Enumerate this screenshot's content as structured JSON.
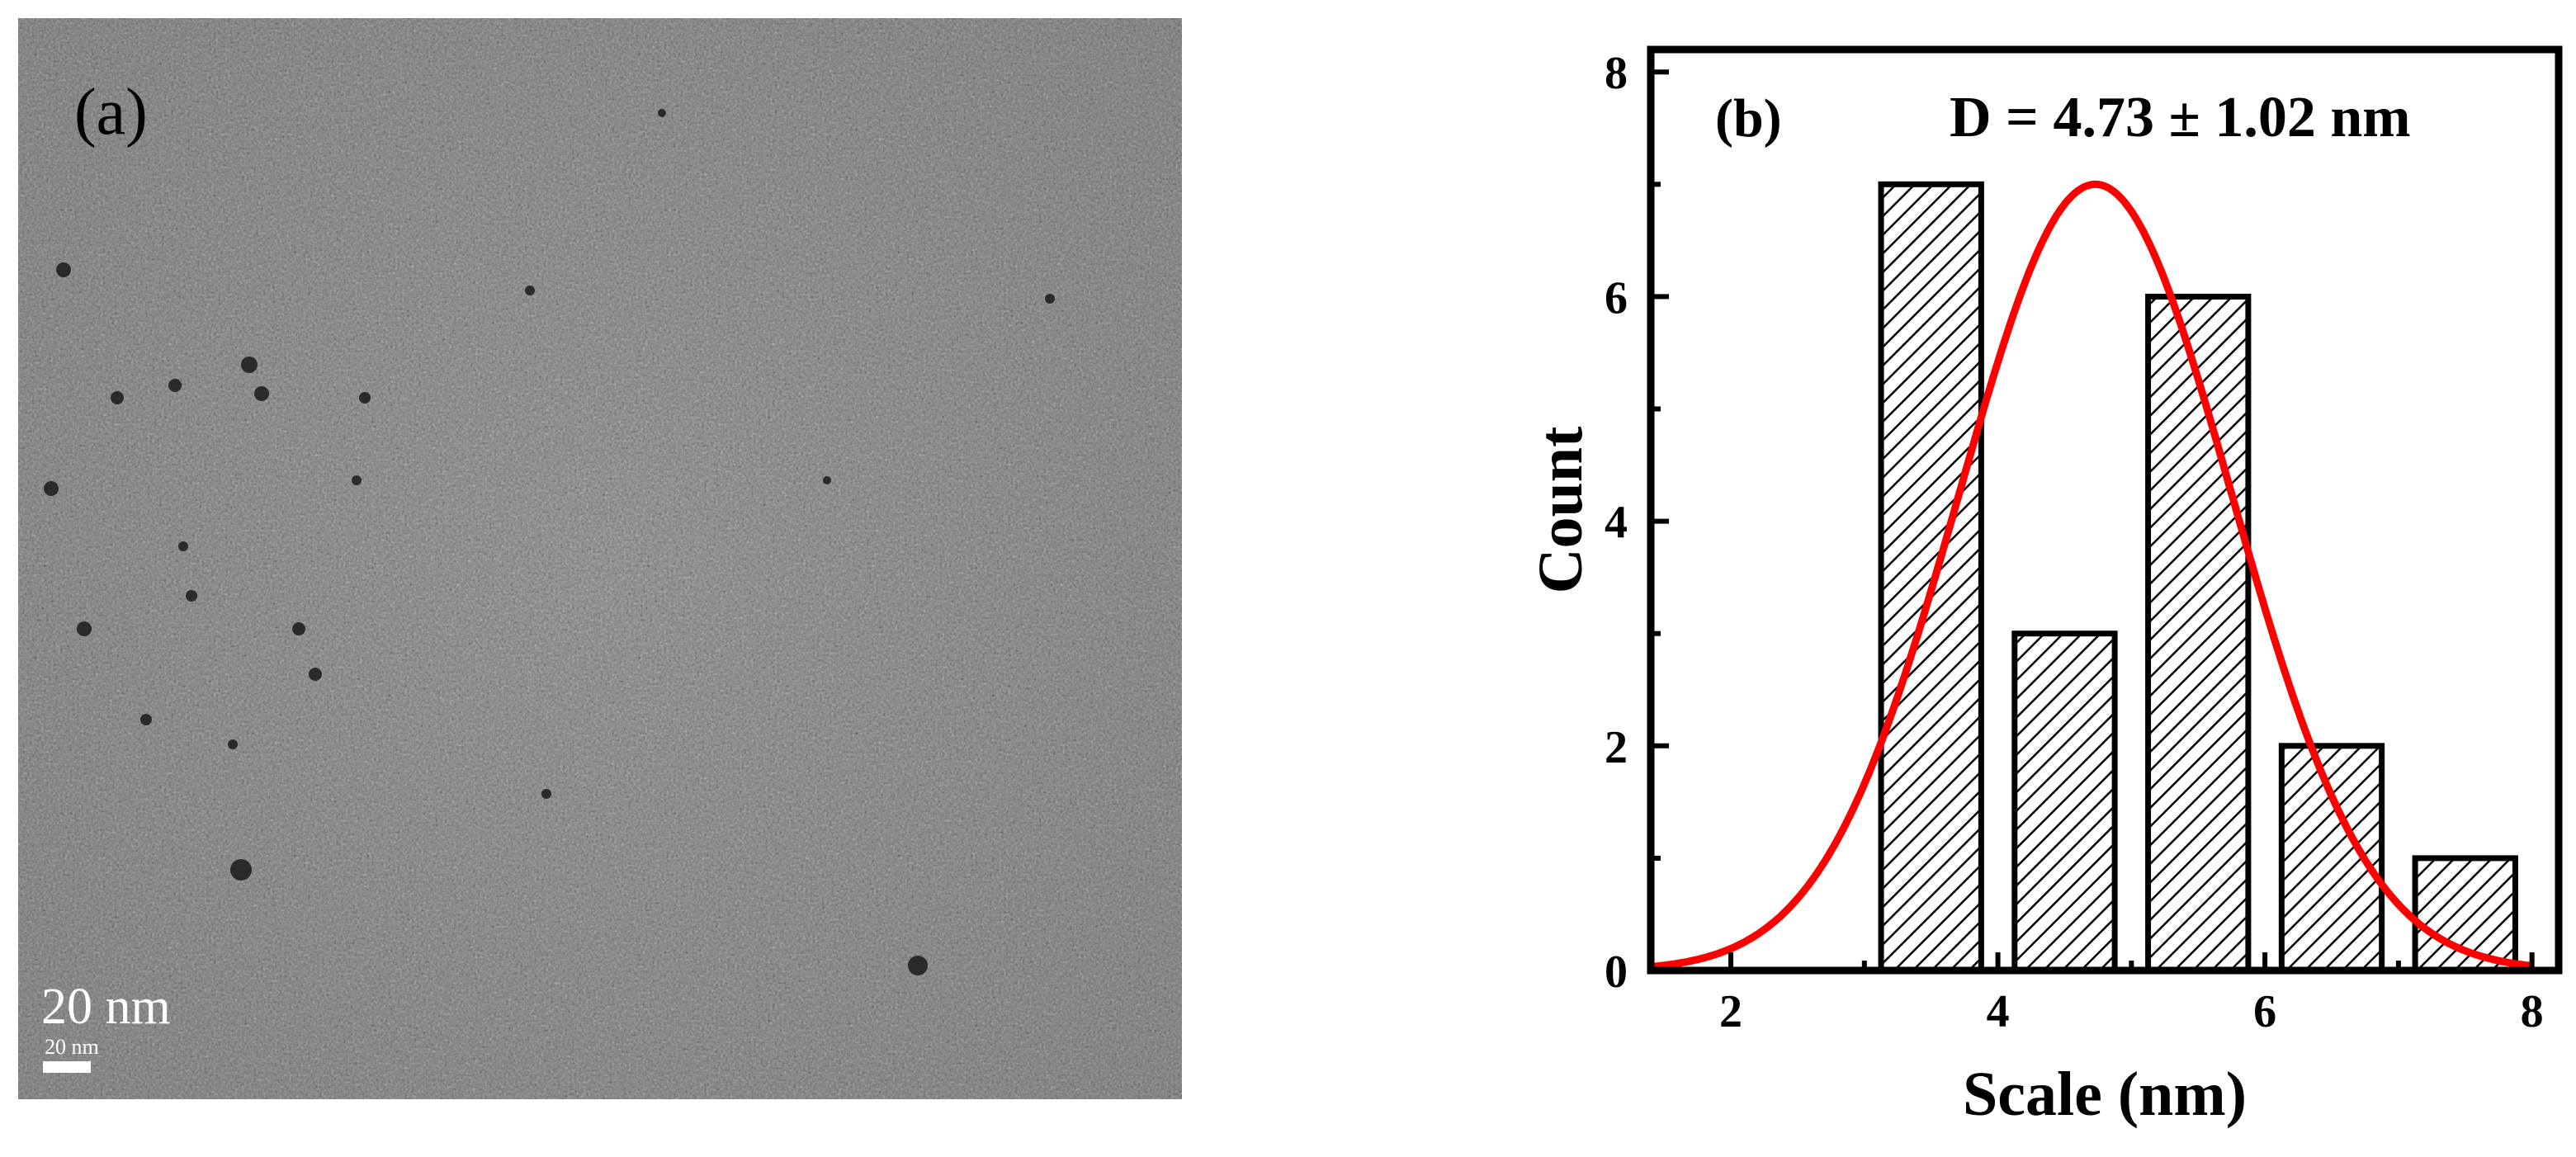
{
  "panel_a": {
    "label": "(a)",
    "scale_bar_large": "20 nm",
    "scale_bar_small": "20 nm"
  },
  "chart_data": {
    "type": "bar",
    "panel_label": "(b)",
    "annotation": "D = 4.73 ± 1.02 nm",
    "xlabel": "Scale (nm)",
    "ylabel": "Count",
    "xlim": [
      1.4,
      8.2
    ],
    "ylim": [
      0,
      8.2
    ],
    "xticks": [
      2,
      4,
      6,
      8
    ],
    "yticks": [
      0,
      2,
      4,
      6,
      8
    ],
    "bar_width": 0.75,
    "bin_centers": [
      3.5,
      4.5,
      5.5,
      6.5,
      7.5
    ],
    "values": [
      7,
      3,
      6,
      2,
      1
    ],
    "fit": {
      "type": "gaussian",
      "mean": 4.73,
      "sigma": 1.02,
      "peak": 7.0,
      "color": "#ff0000"
    },
    "bar_fill": "hatched",
    "grid": false
  }
}
